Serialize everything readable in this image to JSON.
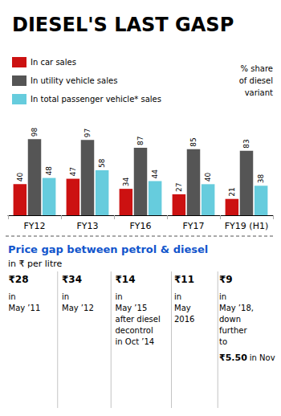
{
  "chart_data": {
    "type": "bar",
    "title": "DIESEL'S LAST GASP",
    "categories": [
      "FY12",
      "FY13",
      "FY16",
      "FY17",
      "FY19 (H1)"
    ],
    "series": [
      {
        "name": "In car sales",
        "color": "#cc1111",
        "values": [
          40,
          47,
          34,
          27,
          21
        ]
      },
      {
        "name": "In utility vehicle sales",
        "color": "#555555",
        "values": [
          98,
          97,
          87,
          85,
          83
        ]
      },
      {
        "name": "In total passenger vehicle* sales",
        "color": "#66ccdd",
        "values": [
          48,
          58,
          44,
          40,
          38
        ]
      }
    ],
    "legend_note": "% share\nof diesel\nvariant",
    "ylim": [
      0,
      120
    ],
    "grid": false,
    "legend": "upper left",
    "data_labels": true,
    "tick_labels": "x",
    "price_section": {
      "title": "Price gap between petrol & diesel",
      "subtitle": "in ₹ per litre",
      "columns": [
        {
          "amount": "₹28",
          "text": "in\nMay ’11"
        },
        {
          "amount": "₹34",
          "text": "in\nMay ’12"
        },
        {
          "amount": "₹14",
          "text": "in\nMay ’15\nafter diesel\ndecontrol\nin Oct ’14"
        },
        {
          "amount": "₹11",
          "text": "in\nMay\n2016"
        },
        {
          "amount": "₹9",
          "text": "in\nMay ’18,\ndown\nfurther\nto",
          "amount2": "₹5.50",
          "text2": "in Nov"
        }
      ]
    }
  }
}
